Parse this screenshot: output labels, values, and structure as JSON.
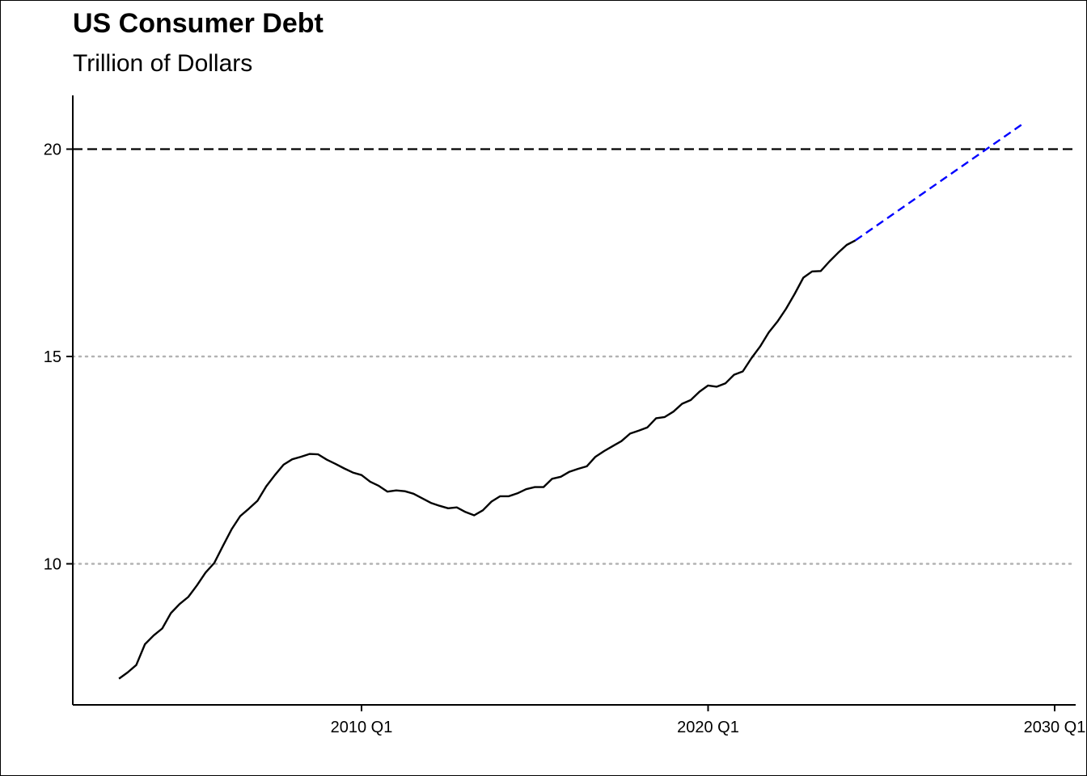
{
  "chart_data": {
    "type": "line",
    "title": "US Consumer Debt",
    "subtitle": "Trillion of Dollars",
    "xlabel": "",
    "ylabel": "",
    "x_ticks": [
      {
        "label": "2010 Q1",
        "value": 2010.0
      },
      {
        "label": "2020 Q1",
        "value": 2020.0
      },
      {
        "label": "2030 Q1",
        "value": 2030.0
      }
    ],
    "y_ticks": [
      10,
      15,
      20
    ],
    "xlim": [
      2001.7,
      2030.7
    ],
    "ylim": [
      6.6,
      21.3
    ],
    "grid": "horizontal dotted at y ticks",
    "reference_line": {
      "y": 20,
      "style": "dashed",
      "color": "#000000"
    },
    "series": [
      {
        "style": "solid",
        "color": "#000000",
        "x": [
          2003.0,
          2003.25,
          2003.5,
          2003.75,
          2004.0,
          2004.25,
          2004.5,
          2004.75,
          2005.0,
          2005.25,
          2005.5,
          2005.75,
          2006.0,
          2006.25,
          2006.5,
          2006.75,
          2007.0,
          2007.25,
          2007.5,
          2007.75,
          2008.0,
          2008.25,
          2008.5,
          2008.75,
          2009.0,
          2009.25,
          2009.5,
          2009.75,
          2010.0,
          2010.25,
          2010.5,
          2010.75,
          2011.0,
          2011.25,
          2011.5,
          2011.75,
          2012.0,
          2012.25,
          2012.5,
          2012.75,
          2013.0,
          2013.25,
          2013.5,
          2013.75,
          2014.0,
          2014.25,
          2014.5,
          2014.75,
          2015.0,
          2015.25,
          2015.5,
          2015.75,
          2016.0,
          2016.25,
          2016.5,
          2016.75,
          2017.0,
          2017.25,
          2017.5,
          2017.75,
          2018.0,
          2018.25,
          2018.5,
          2018.75,
          2019.0,
          2019.25,
          2019.5,
          2019.75,
          2020.0,
          2020.25,
          2020.5,
          2020.75,
          2021.0,
          2021.25,
          2021.5,
          2021.75,
          2022.0,
          2022.25,
          2022.5,
          2022.75,
          2023.0,
          2023.25,
          2023.5,
          2023.75,
          2024.0,
          2024.25
        ],
        "values": [
          7.23,
          7.38,
          7.56,
          8.06,
          8.27,
          8.44,
          8.81,
          9.03,
          9.2,
          9.48,
          9.79,
          10.02,
          10.43,
          10.83,
          11.15,
          11.33,
          11.52,
          11.87,
          12.14,
          12.39,
          12.52,
          12.58,
          12.65,
          12.64,
          12.51,
          12.41,
          12.3,
          12.2,
          12.14,
          11.98,
          11.88,
          11.74,
          11.77,
          11.75,
          11.69,
          11.58,
          11.47,
          11.4,
          11.34,
          11.36,
          11.25,
          11.17,
          11.29,
          11.5,
          11.63,
          11.63,
          11.7,
          11.8,
          11.85,
          11.85,
          12.05,
          12.1,
          12.22,
          12.29,
          12.35,
          12.58,
          12.72,
          12.84,
          12.96,
          13.14,
          13.21,
          13.29,
          13.51,
          13.54,
          13.67,
          13.86,
          13.95,
          14.15,
          14.3,
          14.27,
          14.35,
          14.56,
          14.64,
          14.96,
          15.24,
          15.58,
          15.84,
          16.15,
          16.51,
          16.9,
          17.05,
          17.06,
          17.29,
          17.5,
          17.69,
          17.8
        ]
      },
      {
        "style": "dashed",
        "color": "#0000ff",
        "x": [
          2024.25,
          2029.1
        ],
        "values": [
          17.8,
          20.62
        ]
      }
    ]
  }
}
